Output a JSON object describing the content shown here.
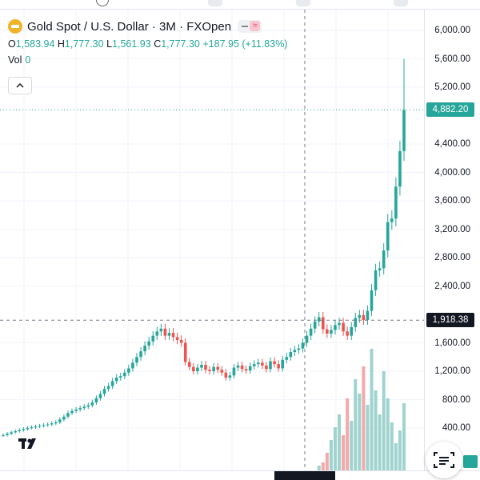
{
  "symbol": {
    "title": "Gold Spot / U.S. Dollar · 3M · FXOpen"
  },
  "ohlc": {
    "o_label": "O",
    "o": "1,583.94",
    "h_label": "H",
    "h": "1,777.30",
    "l_label": "L",
    "l": "1,561.93",
    "c_label": "C",
    "c": "1,777.30",
    "change": "+187.95 (+11.83%)"
  },
  "volume": {
    "label": "Vol",
    "value": "0"
  },
  "price_axis": {
    "labels": [
      "6,000.00",
      "5,600.00",
      "5,200.00",
      "4,400.00",
      "4,000.00",
      "3,600.00",
      "3,200.00",
      "2,800.00",
      "2,400.00",
      "1,600.00",
      "1,200.00",
      "800.00",
      "400.00"
    ],
    "current_price": "4,882.20",
    "crosshair_price": "1,918.38"
  },
  "colors": {
    "up": "#26a69a",
    "down": "#ef5350",
    "vol_up": "#9fd3ce",
    "vol_down": "#f4a8aa",
    "crosshair_bg": "#131722"
  },
  "icons": {
    "logo": "tradingview-logo",
    "tool": "scan-list-icon",
    "collapse": "chevron-up-icon",
    "symbol": "gold-coin-icon"
  },
  "chart_data": {
    "type": "candlestick",
    "title": "Gold Spot / U.S. Dollar · 3M · FXOpen",
    "ylim": [
      0,
      6200
    ],
    "y_ticks": [
      400,
      800,
      1200,
      1600,
      2400,
      2800,
      3200,
      3600,
      4000,
      4400,
      5200,
      5600,
      6000
    ],
    "close_series": [
      300,
      320,
      340,
      355,
      370,
      385,
      400,
      410,
      420,
      430,
      440,
      450,
      465,
      480,
      520,
      560,
      610,
      640,
      660,
      680,
      700,
      720,
      760,
      820,
      880,
      950,
      990,
      1060,
      1110,
      1130,
      1180,
      1240,
      1320,
      1400,
      1480,
      1560,
      1620,
      1700,
      1760,
      1800,
      1700,
      1740,
      1680,
      1640,
      1600,
      1330,
      1260,
      1200,
      1250,
      1290,
      1220,
      1200,
      1260,
      1220,
      1180,
      1110,
      1140,
      1250,
      1280,
      1230,
      1210,
      1270,
      1300,
      1320,
      1280,
      1230,
      1340,
      1300,
      1240,
      1360,
      1400,
      1470,
      1500,
      1520,
      1600,
      1700,
      1800,
      1900,
      1960,
      1790,
      1730,
      1780,
      1850,
      1880,
      1760,
      1700,
      1820,
      1950,
      1990,
      1920,
      2050,
      2340,
      2620,
      2650,
      2900,
      3300,
      3350,
      3800,
      4300,
      4880
    ],
    "current_price": 4882.2,
    "peak_high": 5600,
    "crosshair_price": 1918.38
  }
}
